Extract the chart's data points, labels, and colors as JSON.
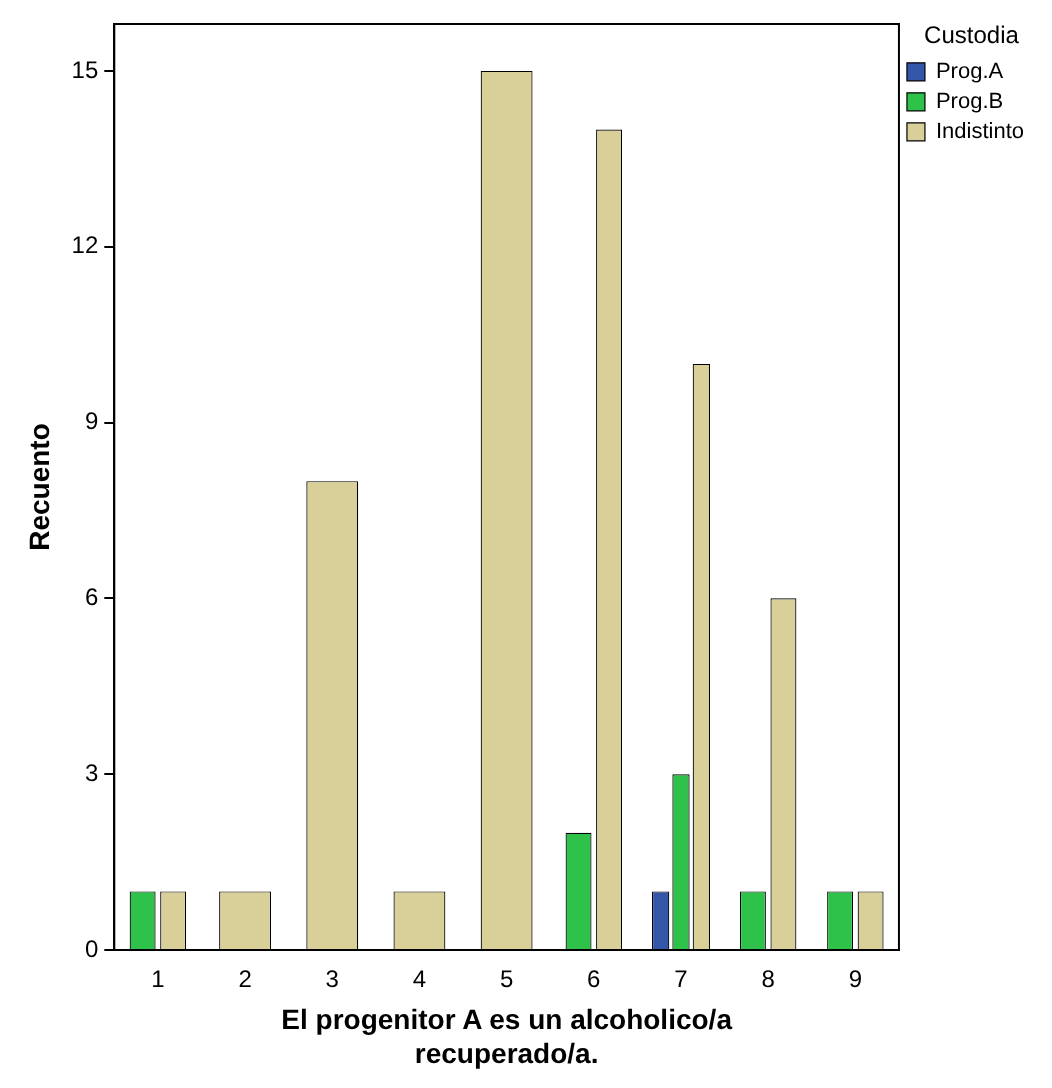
{
  "chart_data": {
    "type": "bar",
    "xlabel": "El progenitor A es un alcoholico/a recuperado/a.",
    "ylabel": "Recuento",
    "legend_title": "Custodia",
    "legend": "top right",
    "categories": [
      "1",
      "2",
      "3",
      "4",
      "5",
      "6",
      "7",
      "8",
      "9"
    ],
    "series": [
      {
        "name": "Prog.A",
        "color": "#3356a8",
        "values": [
          null,
          null,
          null,
          null,
          null,
          null,
          1,
          null,
          null
        ]
      },
      {
        "name": "Prog.B",
        "color": "#2ec24a",
        "values": [
          1,
          null,
          null,
          null,
          null,
          2,
          3,
          1,
          1
        ]
      },
      {
        "name": "Indistinto",
        "color": "#d8d098",
        "values": [
          1,
          1,
          8,
          1,
          15,
          14,
          10,
          6,
          1
        ]
      }
    ],
    "ylim": [
      0,
      15.8
    ],
    "yticks": [
      0,
      3,
      6,
      9,
      12,
      15
    ],
    "grid": false
  }
}
